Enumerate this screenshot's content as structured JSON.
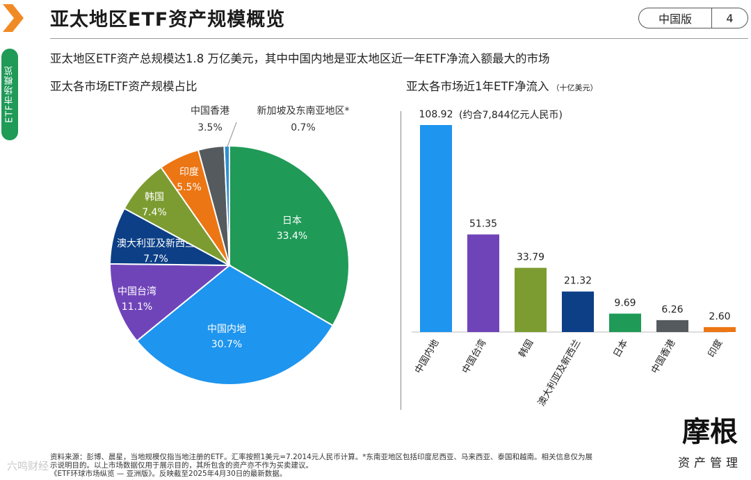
{
  "header": {
    "title": "亚太地区ETF资产规模概览",
    "edition": "中国版",
    "page_number": "4"
  },
  "sidebar": {
    "tab_label": "ETF市场概览"
  },
  "subtitle": "亚太地区ETF资产总规模达1.8 万亿美元，其中中国内地是亚太地区近一年ETF净流入额最大的市场",
  "left_section_title": "亚太各市场ETF资产规模占比",
  "right_section_title": "亚太各市场近1年ETF净流入",
  "right_section_unit": "（十亿美元）",
  "colors": {
    "brand_green": "#1f9a57",
    "chevron_orange": "#f08a24"
  },
  "chart_data": [
    {
      "type": "pie",
      "title": "亚太各市场ETF资产规模占比",
      "slices": [
        {
          "label": "日本",
          "value": 33.4,
          "display": "33.4%",
          "color": "#1f9a57"
        },
        {
          "label": "中国内地",
          "value": 30.7,
          "display": "30.7%",
          "color": "#1e95ef"
        },
        {
          "label": "中国台湾",
          "value": 11.1,
          "display": "11.1%",
          "color": "#7044b9"
        },
        {
          "label": "澳大利亚及新西兰",
          "value": 7.7,
          "display": "7.7%",
          "color": "#0c3f86"
        },
        {
          "label": "韩国",
          "value": 7.4,
          "display": "7.4%",
          "color": "#7c9c31"
        },
        {
          "label": "印度",
          "value": 5.5,
          "display": "5.5%",
          "color": "#ec7614"
        },
        {
          "label": "中国香港",
          "value": 3.5,
          "display": "3.5%",
          "color": "#555a5e"
        },
        {
          "label": "新加坡及东南亚地区*",
          "value": 0.7,
          "display": "0.7%",
          "color": "#2c8fd0"
        }
      ]
    },
    {
      "type": "bar",
      "title": "亚太各市场近1年ETF净流入",
      "unit": "十亿美元",
      "categories": [
        "中国内地",
        "中国台湾",
        "韩国",
        "澳大利亚及新西兰",
        "日本",
        "中国香港",
        "印度"
      ],
      "values": [
        108.92,
        51.35,
        33.79,
        21.32,
        9.69,
        6.26,
        2.6
      ],
      "value_labels": [
        "108.92",
        "51.35",
        "33.79",
        "21.32",
        "9.69",
        "6.26",
        "2.60"
      ],
      "colors": [
        "#1e95ef",
        "#7044b9",
        "#7c9c31",
        "#0c3f86",
        "#1f9a57",
        "#555a5e",
        "#ec7614"
      ],
      "annotation": "(约合7,844亿元人民币)",
      "ylim": [
        0,
        110
      ]
    }
  ],
  "footnote_lines": [
    "资料来源：彭博、晨星，当地规模仅指当地注册的ETF。汇率按照1美元=7.2014元人民币计算。*东南亚地区包括印度尼西亚、马来西亚、泰国和越南。相关信息仅为展",
    "示说明目的。以上市场数据仅用于展示目的，其所包含的资产亦不作为买卖建议。",
    "《ETF环球市场纵览 — 亚洲版》。反映截至2025年4月30日的最新数据。"
  ],
  "logo": {
    "mark": "摩根",
    "text": "资产管理"
  },
  "watermark": "六鸣财经"
}
